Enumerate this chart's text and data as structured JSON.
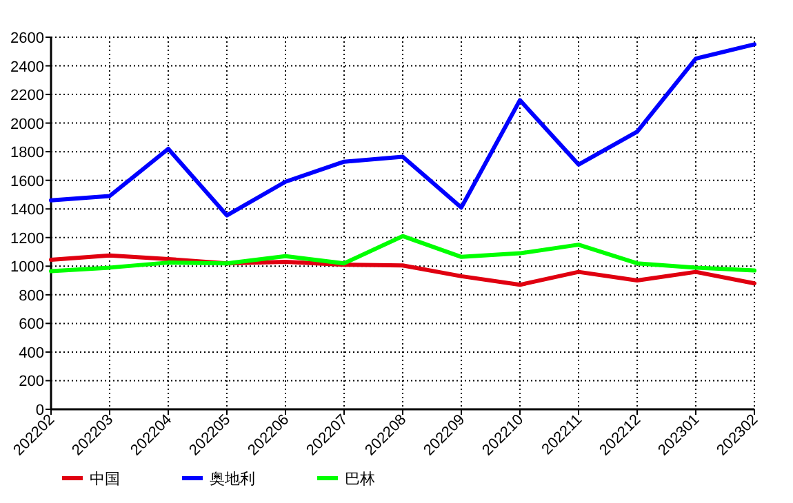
{
  "chart_data": {
    "type": "line",
    "categories": [
      "202202",
      "202203",
      "202204",
      "202205",
      "202206",
      "202207",
      "202208",
      "202209",
      "202210",
      "202211",
      "202212",
      "202301",
      "202302"
    ],
    "series": [
      {
        "name": "中国",
        "color": "#e00010",
        "values": [
          1045,
          1075,
          1050,
          1020,
          1030,
          1010,
          1005,
          930,
          870,
          960,
          900,
          960,
          880
        ]
      },
      {
        "name": "奥地利",
        "color": "#0000ff",
        "values": [
          1460,
          1490,
          1820,
          1355,
          1590,
          1730,
          1765,
          1410,
          2160,
          1710,
          1940,
          2450,
          2550
        ]
      },
      {
        "name": "巴林",
        "color": "#00ff00",
        "values": [
          965,
          990,
          1025,
          1020,
          1070,
          1020,
          1210,
          1065,
          1090,
          1150,
          1020,
          990,
          970
        ]
      }
    ],
    "ylim": [
      0,
      2600
    ],
    "yticks": [
      0,
      200,
      400,
      600,
      800,
      1000,
      1200,
      1400,
      1600,
      1800,
      2000,
      2200,
      2400,
      2600
    ],
    "grid": true,
    "legend": "bottom",
    "line_style": "solid"
  }
}
